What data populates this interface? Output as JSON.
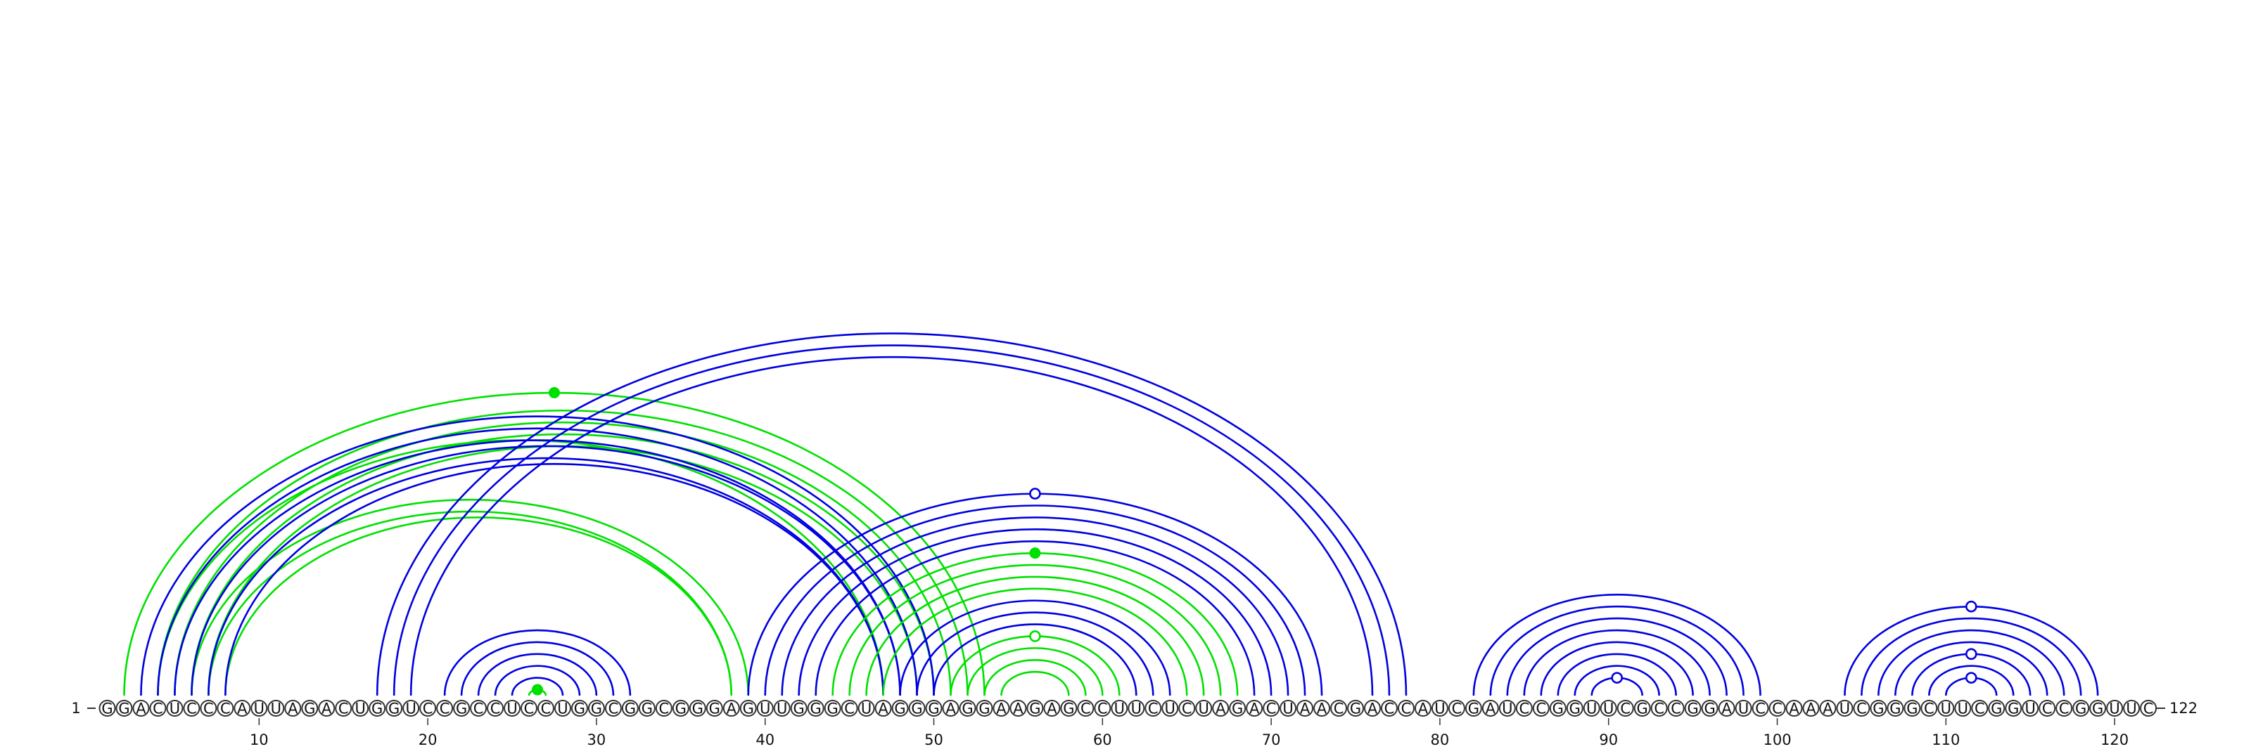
{
  "sequence": "GGACUCCCAUUAGACUGGUCCGCCUCCUGGCGGCGGGAGUUGGGCUAGGGAGGAAGAGCCUUCUCUAGACUAACGACCAUCGAUCCGGUUCGCCGGAUCCAAAUCGGGCUUCGGUCCGGUUC",
  "start_label": "1",
  "end_label": "122",
  "tick_labels": [
    "10",
    "20",
    "30",
    "40",
    "50",
    "60",
    "70",
    "80",
    "90",
    "100",
    "110",
    "120"
  ],
  "colors": {
    "blue": "#0000e0",
    "green": "#00e000",
    "nucleotide_stroke": "#333333"
  },
  "arc_groups": [
    {
      "name": "green-a",
      "color": "green",
      "pairs": [
        [
          2,
          53
        ],
        [
          4,
          52
        ],
        [
          5,
          51
        ],
        [
          6,
          50
        ],
        [
          7,
          49
        ]
      ]
    },
    {
      "name": "green-b",
      "color": "green",
      "pairs": [
        [
          4,
          47
        ],
        [
          6,
          39
        ],
        [
          7,
          38
        ],
        [
          8,
          38
        ]
      ]
    },
    {
      "name": "blue-a",
      "color": "blue",
      "pairs": [
        [
          3,
          50
        ],
        [
          4,
          49
        ],
        [
          5,
          48
        ],
        [
          6,
          48
        ],
        [
          7,
          47
        ],
        [
          8,
          47
        ]
      ]
    },
    {
      "name": "blue-b",
      "color": "blue",
      "pairs": [
        [
          17,
          78
        ],
        [
          18,
          77
        ],
        [
          19,
          76
        ]
      ]
    },
    {
      "name": "blue-c",
      "color": "blue",
      "pairs": [
        [
          21,
          32
        ],
        [
          22,
          31
        ],
        [
          23,
          30
        ],
        [
          24,
          29
        ],
        [
          25,
          28
        ]
      ]
    },
    {
      "name": "green-c",
      "color": "green",
      "pairs": [
        [
          26,
          27
        ]
      ]
    },
    {
      "name": "blue-d",
      "color": "blue",
      "pairs": [
        [
          39,
          73
        ],
        [
          40,
          72
        ],
        [
          41,
          71
        ],
        [
          42,
          70
        ],
        [
          43,
          69
        ]
      ]
    },
    {
      "name": "green-d",
      "color": "green",
      "pairs": [
        [
          44,
          68
        ],
        [
          45,
          67
        ],
        [
          46,
          66
        ],
        [
          47,
          65
        ]
      ]
    },
    {
      "name": "blue-e",
      "color": "blue",
      "pairs": [
        [
          48,
          64
        ],
        [
          49,
          63
        ],
        [
          50,
          62
        ]
      ]
    },
    {
      "name": "green-e",
      "color": "green",
      "pairs": [
        [
          51,
          61
        ],
        [
          52,
          60
        ],
        [
          53,
          59
        ],
        [
          54,
          58
        ]
      ]
    },
    {
      "name": "blue-f",
      "color": "blue",
      "pairs": [
        [
          82,
          99
        ],
        [
          83,
          98
        ],
        [
          84,
          97
        ],
        [
          85,
          96
        ],
        [
          86,
          95
        ],
        [
          87,
          94
        ],
        [
          88,
          93
        ],
        [
          89,
          92
        ]
      ]
    },
    {
      "name": "blue-g",
      "color": "blue",
      "pairs": [
        [
          104,
          119
        ],
        [
          105,
          118
        ],
        [
          106,
          117
        ],
        [
          107,
          116
        ],
        [
          108,
          115
        ],
        [
          109,
          114
        ],
        [
          110,
          113
        ]
      ]
    }
  ],
  "markers": [
    {
      "name": "green-filled-marker-1",
      "color": "green",
      "filled": true,
      "pair": [
        2,
        53
      ]
    },
    {
      "name": "green-filled-marker-2",
      "color": "green",
      "filled": true,
      "pair": [
        26,
        27
      ]
    },
    {
      "name": "green-filled-marker-3",
      "color": "green",
      "filled": true,
      "pair": [
        44,
        68
      ]
    },
    {
      "name": "green-hollow-marker",
      "color": "green",
      "filled": false,
      "pair": [
        51,
        61
      ]
    },
    {
      "name": "blue-hollow-marker-1",
      "color": "blue",
      "filled": false,
      "pair": [
        39,
        73
      ]
    },
    {
      "name": "blue-hollow-marker-2",
      "color": "blue",
      "filled": false,
      "pair": [
        89,
        92
      ]
    },
    {
      "name": "blue-hollow-marker-3",
      "color": "blue",
      "filled": false,
      "pair": [
        104,
        119
      ]
    },
    {
      "name": "blue-hollow-marker-4",
      "color": "blue",
      "filled": false,
      "pair": [
        108,
        115
      ]
    },
    {
      "name": "blue-hollow-marker-5",
      "color": "blue",
      "filled": false,
      "pair": [
        110,
        113
      ]
    }
  ]
}
